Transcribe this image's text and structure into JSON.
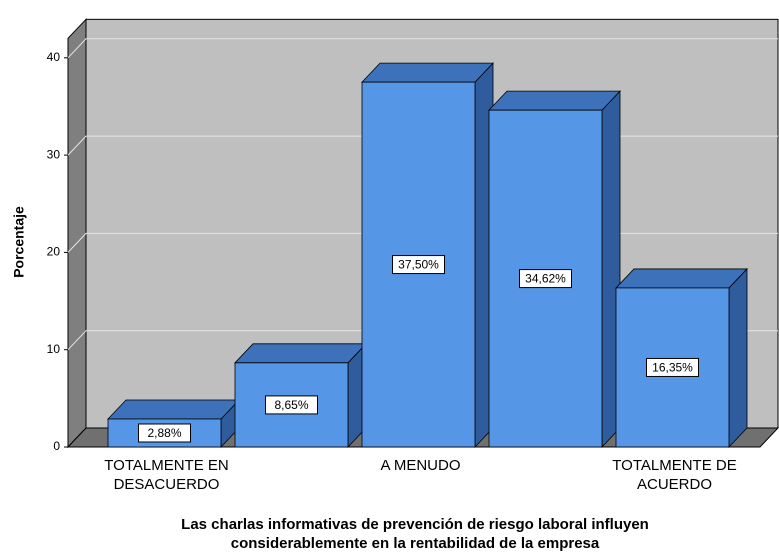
{
  "chart_data": {
    "type": "bar3d",
    "categories": [
      "TOTALMENTE EN DESACUERDO",
      null,
      "A MENUDO",
      null,
      "TOTALMENTE DE ACUERDO"
    ],
    "values": [
      2.88,
      8.65,
      37.5,
      34.62,
      16.35
    ],
    "value_labels": [
      "2,88%",
      "8,65%",
      "37,50%",
      "34,62%",
      "16,35%"
    ],
    "color": "#5596e6",
    "ylabel": "Porcentaje",
    "xlabel": [
      "Las charlas informativas de prevención de riesgo laboral influyen",
      "considerablemente en la rentabilidad de la empresa"
    ],
    "ylim": [
      0,
      42
    ],
    "yticks": [
      0,
      10,
      20,
      30,
      40
    ],
    "grid": true
  }
}
